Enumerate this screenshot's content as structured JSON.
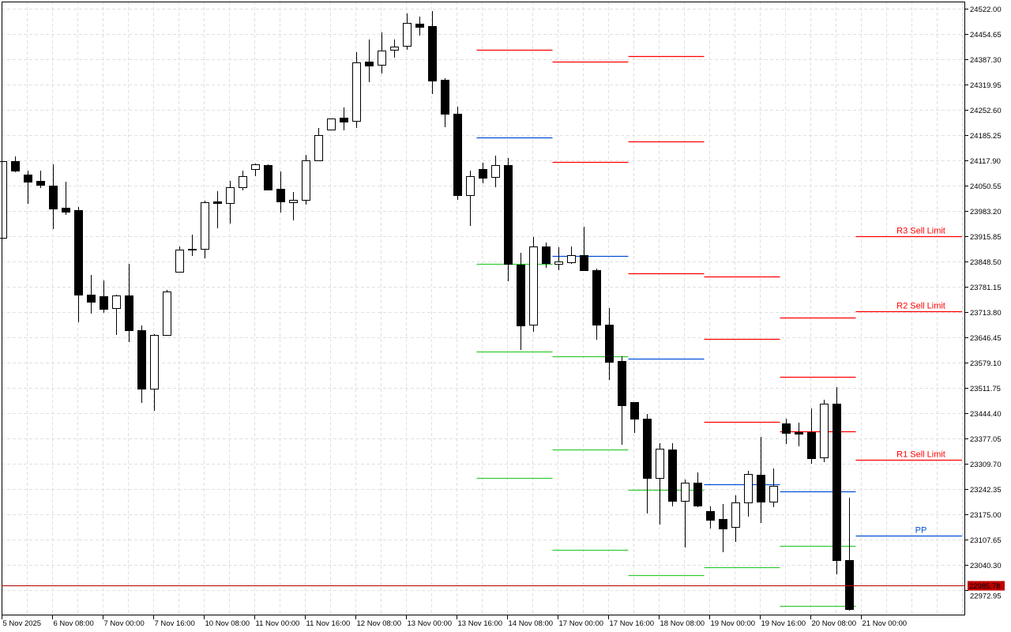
{
  "chart_data": {
    "type": "candlestick",
    "timeframe_bars": "H4",
    "ylim": [
      22905.6,
      24541.0
    ],
    "grid": true,
    "colors": {
      "bull_body": "#ffffff",
      "bear_body": "#000000",
      "outline": "#000000",
      "grid": "#e0e0e0",
      "resistance": "#ff0000",
      "pivot": "#0050d8",
      "support": "#33cc33",
      "price_line": "#b00000",
      "price_label_bg": "#c00000"
    },
    "y_ticks": [
      "24522.00",
      "24454.65",
      "24387.30",
      "24319.95",
      "24252.60",
      "24185.25",
      "24117.90",
      "24050.55",
      "23983.20",
      "23915.85",
      "23848.50",
      "23781.15",
      "23713.80",
      "23646.45",
      "23579.10",
      "23511.75",
      "23444.40",
      "23377.05",
      "23309.70",
      "23242.35",
      "23175.00",
      "23107.65",
      "23040.30",
      "22972.95"
    ],
    "x_ticks": [
      "5 Nov 2025",
      "6 Nov 08:00",
      "7 Nov 00:00",
      "7 Nov 16:00",
      "10 Nov 08:00",
      "11 Nov 00:00",
      "11 Nov 16:00",
      "12 Nov 08:00",
      "13 Nov 00:00",
      "13 Nov 16:00",
      "14 Nov 08:00",
      "17 Nov 00:00",
      "17 Nov 16:00",
      "18 Nov 08:00",
      "19 Nov 00:00",
      "19 Nov 16:00",
      "20 Nov 08:00",
      "21 Nov 00:00"
    ],
    "x_tick_every_bars": 4,
    "candles_ohlc": [
      [
        23911.6,
        24115.8,
        23911.6,
        24115.8
      ],
      [
        24115.8,
        24128.4,
        24086.3,
        24090.5
      ],
      [
        24080.0,
        24090.5,
        24002.1,
        24061.1
      ],
      [
        24063.2,
        24090.5,
        24044.2,
        24052.7
      ],
      [
        24050.5,
        24107.4,
        23934.8,
        23989.5
      ],
      [
        23991.6,
        24061.1,
        23972.7,
        23981.1
      ],
      [
        23985.3,
        23993.7,
        23686.4,
        23760.1
      ],
      [
        23760.1,
        23812.7,
        23709.6,
        23741.2
      ],
      [
        23755.9,
        23798.0,
        23711.7,
        23722.3
      ],
      [
        23724.4,
        23760.1,
        23652.8,
        23758.0
      ],
      [
        23758.0,
        23842.2,
        23633.8,
        23665.4
      ],
      [
        23665.4,
        23678.0,
        23471.8,
        23509.7
      ],
      [
        23509.7,
        23654.9,
        23450.7,
        23652.8
      ],
      [
        23652.8,
        23772.7,
        23652.8,
        23768.5
      ],
      [
        23821.2,
        23888.5,
        23821.2,
        23880.1
      ],
      [
        23882.2,
        23920.1,
        23863.3,
        23883.0
      ],
      [
        23882.2,
        24010.6,
        23857.0,
        24006.4
      ],
      [
        24008.5,
        24035.8,
        23936.9,
        24004.3
      ],
      [
        24004.3,
        24063.2,
        23949.5,
        24046.3
      ],
      [
        24046.3,
        24090.5,
        24037.9,
        24075.8
      ],
      [
        24094.8,
        24109.5,
        24075.8,
        24107.4
      ],
      [
        24105.3,
        24107.4,
        24040.1,
        24040.1
      ],
      [
        24042.1,
        24088.4,
        23979.0,
        24008.5
      ],
      [
        24006.4,
        24033.7,
        23958.0,
        24012.7
      ],
      [
        24012.7,
        24132.6,
        24000.0,
        24117.9
      ],
      [
        24117.9,
        24204.2,
        24117.9,
        24185.3
      ],
      [
        24200.0,
        24229.5,
        24197.9,
        24229.5
      ],
      [
        24231.6,
        24258.9,
        24197.9,
        24221.0
      ],
      [
        24223.1,
        24406.3,
        24204.2,
        24378.9
      ],
      [
        24381.0,
        24439.9,
        24326.3,
        24370.5
      ],
      [
        24372.6,
        24458.9,
        24349.5,
        24410.5
      ],
      [
        24412.6,
        24439.9,
        24391.5,
        24421.0
      ],
      [
        24423.1,
        24509.4,
        24412.6,
        24484.1
      ],
      [
        24482.0,
        24501.0,
        24450.5,
        24473.6
      ],
      [
        24475.7,
        24515.7,
        24294.7,
        24330.5
      ],
      [
        24332.6,
        24336.8,
        24206.3,
        24242.1
      ],
      [
        24242.1,
        24261.0,
        24012.7,
        24025.3
      ],
      [
        24025.3,
        24090.5,
        23943.2,
        24075.8
      ],
      [
        24094.8,
        24111.6,
        24056.9,
        24071.6
      ],
      [
        24073.7,
        24130.5,
        24046.3,
        24105.3
      ],
      [
        24105.3,
        24124.2,
        23795.9,
        23842.2
      ],
      [
        23840.1,
        23871.6,
        23612.8,
        23678.0
      ],
      [
        23680.1,
        23913.8,
        23661.2,
        23888.5
      ],
      [
        23888.5,
        23899.0,
        23831.7,
        23844.3
      ],
      [
        23842.2,
        23886.4,
        23825.4,
        23848.5
      ],
      [
        23846.4,
        23888.5,
        23842.2,
        23865.4
      ],
      [
        23865.4,
        23941.1,
        23823.3,
        23825.4
      ],
      [
        23825.4,
        23829.6,
        23640.2,
        23680.1
      ],
      [
        23680.1,
        23724.4,
        23532.8,
        23581.2
      ],
      [
        23583.3,
        23596.0,
        23360.3,
        23465.5
      ],
      [
        23473.9,
        23473.9,
        23391.8,
        23429.7
      ],
      [
        23429.7,
        23442.3,
        23177.1,
        23271.8
      ],
      [
        23271.8,
        23364.4,
        23147.6,
        23349.7
      ],
      [
        23347.6,
        23364.4,
        23196.0,
        23210.8
      ],
      [
        23210.8,
        23267.6,
        23086.6,
        23259.2
      ],
      [
        23259.2,
        23286.6,
        23193.9,
        23198.2
      ],
      [
        23183.4,
        23196.0,
        23137.1,
        23160.3
      ],
      [
        23162.4,
        23202.4,
        23074.0,
        23137.1
      ],
      [
        23141.3,
        23225.5,
        23101.3,
        23206.6
      ],
      [
        23206.6,
        23290.8,
        23168.7,
        23282.3
      ],
      [
        23280.2,
        23381.2,
        23151.8,
        23208.7
      ],
      [
        23208.7,
        23297.1,
        23193.9,
        23250.7
      ],
      [
        23417.0,
        23429.7,
        23362.3,
        23391.8
      ],
      [
        23393.9,
        23419.2,
        23356.0,
        23389.7
      ],
      [
        23393.9,
        23457.1,
        23309.7,
        23324.5
      ],
      [
        23326.6,
        23480.2,
        23313.9,
        23469.7
      ],
      [
        23469.7,
        23513.9,
        23015.1,
        23053.0
      ],
      [
        23053.0,
        23219.2,
        22918.3,
        22922.5
      ]
    ],
    "pivot_segments": [
      {
        "start_bar": 38,
        "bars": 6,
        "levels": [
          {
            "kind": "resistance",
            "price": 24412.6
          },
          {
            "kind": "pivot",
            "price": 24178.9
          },
          {
            "kind": "support",
            "price": 23842.2
          },
          {
            "kind": "support",
            "price": 23608.6
          },
          {
            "kind": "support",
            "price": 23271.8
          }
        ]
      },
      {
        "start_bar": 44,
        "bars": 6,
        "levels": [
          {
            "kind": "resistance",
            "price": 24381.0
          },
          {
            "kind": "resistance",
            "price": 24113.7
          },
          {
            "kind": "pivot",
            "price": 23863.3
          },
          {
            "kind": "support",
            "price": 23596.0
          },
          {
            "kind": "support",
            "price": 23347.6
          },
          {
            "kind": "support",
            "price": 23080.3
          }
        ]
      },
      {
        "start_bar": 50,
        "bars": 6,
        "levels": [
          {
            "kind": "resistance",
            "price": 24395.7
          },
          {
            "kind": "resistance",
            "price": 24168.4
          },
          {
            "kind": "resistance",
            "price": 23816.9
          },
          {
            "kind": "pivot",
            "price": 23589.6
          },
          {
            "kind": "support",
            "price": 23240.3
          },
          {
            "kind": "support",
            "price": 23013.0
          }
        ]
      },
      {
        "start_bar": 56,
        "bars": 6,
        "levels": [
          {
            "kind": "resistance",
            "price": 23808.5
          },
          {
            "kind": "resistance",
            "price": 23642.2
          },
          {
            "kind": "resistance",
            "price": 23421.2
          },
          {
            "kind": "pivot",
            "price": 23255.0
          },
          {
            "kind": "support",
            "price": 23034.0
          }
        ]
      },
      {
        "start_bar": 62,
        "bars": 6,
        "levels": [
          {
            "kind": "resistance",
            "price": 23699.0
          },
          {
            "kind": "resistance",
            "price": 23541.2
          },
          {
            "kind": "resistance",
            "price": 23396.0
          },
          {
            "kind": "pivot",
            "price": 23236.0
          },
          {
            "kind": "support",
            "price": 23090.8
          },
          {
            "kind": "support",
            "price": 22930.9
          }
        ]
      }
    ],
    "current_levels": [
      {
        "kind": "resistance",
        "price": 23915.85,
        "label": "R3 Sell Limit"
      },
      {
        "kind": "resistance",
        "price": 23715.9,
        "label": "R2 Sell Limit"
      },
      {
        "kind": "resistance",
        "price": 23320.2,
        "label": "R1 Sell Limit"
      },
      {
        "kind": "pivot",
        "price": 23118.1,
        "label": "PP"
      }
    ],
    "price_line": {
      "price": 22985.78,
      "label": "22985.78"
    }
  }
}
